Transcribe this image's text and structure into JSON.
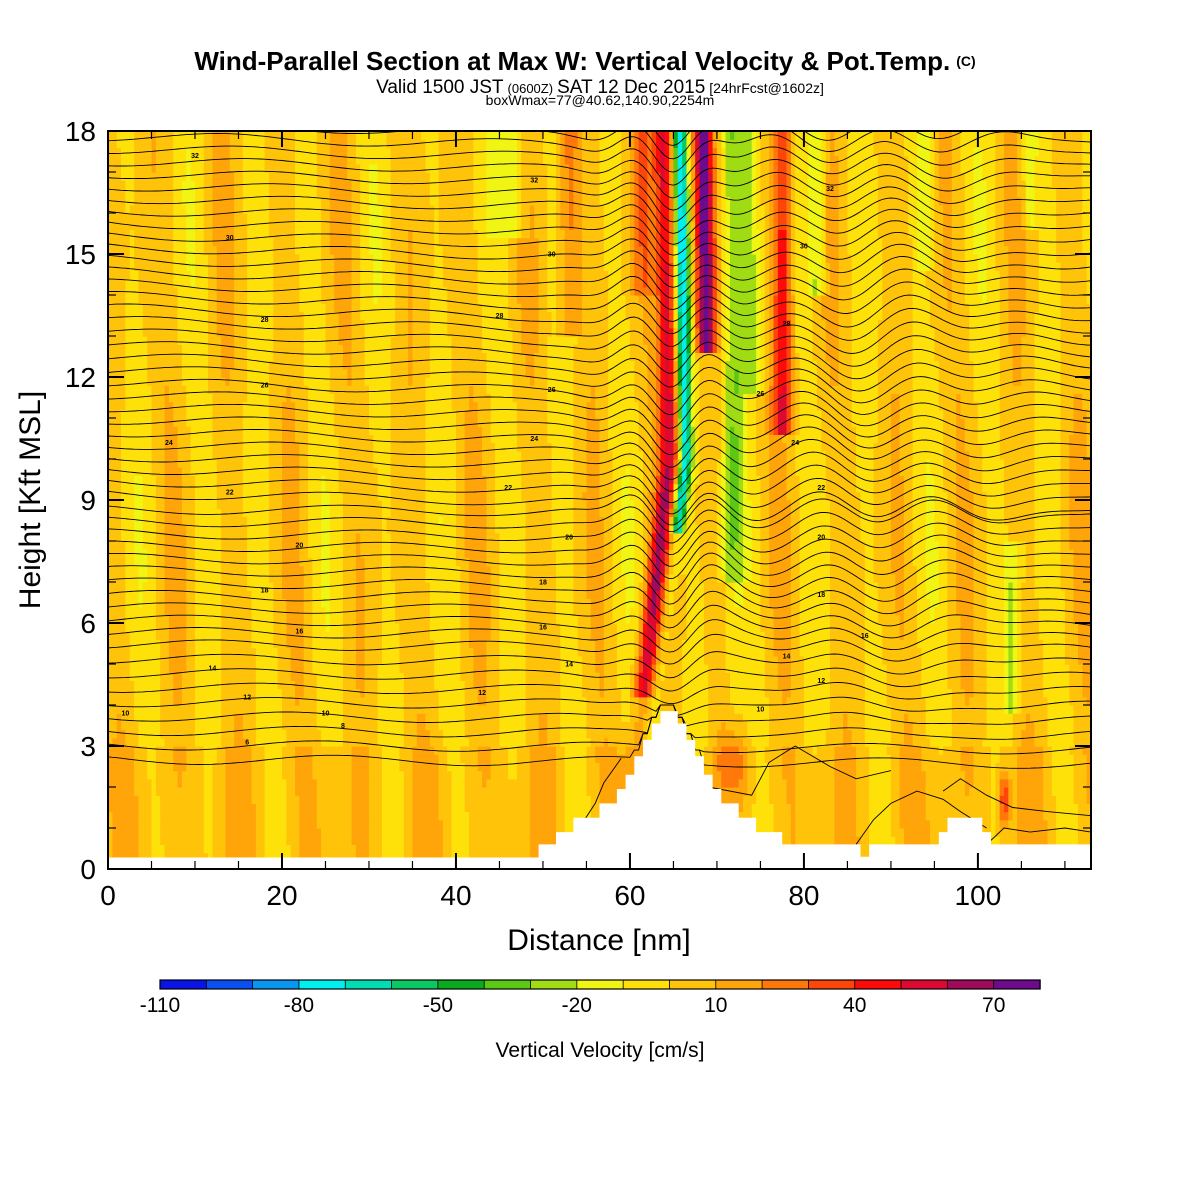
{
  "chart_data": {
    "type": "heatmap",
    "title": "Wind-Parallel Section at Max W: Vertical Velocity & Pot.Temp.",
    "title_mark": "(C)",
    "subtitle_main": "Valid 1500 JST",
    "subtitle_utc": "(0600Z)",
    "subtitle_date": "SAT 12 Dec 2015",
    "subtitle_run": "[24hrFcst@1602z]",
    "subtitle2": "boxWmax=77@40.62,140.90,2254m",
    "xlabel": "Distance [nm]",
    "ylabel": "Height [Kft MSL]",
    "xlim": [
      0,
      113
    ],
    "ylim": [
      0,
      18
    ],
    "xticks": [
      0,
      20,
      40,
      60,
      80,
      100
    ],
    "yticks": [
      0,
      3,
      6,
      9,
      12,
      15,
      18
    ],
    "colorbar": {
      "label": "Vertical Velocity [cm/s]",
      "tick_values": [
        -110,
        -80,
        -50,
        -20,
        10,
        40,
        70
      ],
      "bins": [
        -110,
        -100,
        -90,
        -80,
        -70,
        -60,
        -50,
        -40,
        -30,
        -20,
        -10,
        0,
        10,
        20,
        30,
        40,
        50,
        60,
        70,
        80
      ],
      "colors": [
        "#0a14e6",
        "#0a50f0",
        "#0a96f0",
        "#00f0f0",
        "#00dcb4",
        "#0ac864",
        "#0aaa1e",
        "#5ac814",
        "#a0dc14",
        "#f0f514",
        "#ffe10a",
        "#ffc30a",
        "#ffa50a",
        "#ff780a",
        "#ff460a",
        "#ff0a0a",
        "#dc0a32",
        "#a00a5a",
        "#6e0a8c"
      ]
    },
    "terrain_kft": [
      [
        0,
        0.28
      ],
      [
        49.5,
        0.28
      ],
      [
        49.5,
        0.6
      ],
      [
        51.5,
        0.6
      ],
      [
        51.5,
        0.9
      ],
      [
        53.5,
        0.9
      ],
      [
        53.5,
        1.25
      ],
      [
        56.5,
        1.25
      ],
      [
        56.5,
        1.6
      ],
      [
        58.5,
        1.6
      ],
      [
        58.5,
        1.95
      ],
      [
        59.5,
        1.95
      ],
      [
        59.5,
        2.3
      ],
      [
        60.5,
        2.3
      ],
      [
        60.5,
        2.75
      ],
      [
        61.5,
        2.75
      ],
      [
        61.5,
        3.15
      ],
      [
        62.5,
        3.15
      ],
      [
        62.5,
        3.55
      ],
      [
        63.5,
        3.55
      ],
      [
        63.5,
        3.85
      ],
      [
        65.5,
        3.85
      ],
      [
        65.5,
        3.55
      ],
      [
        66.5,
        3.55
      ],
      [
        66.5,
        3.15
      ],
      [
        67.5,
        3.15
      ],
      [
        67.5,
        2.75
      ],
      [
        68.5,
        2.75
      ],
      [
        68.5,
        2.3
      ],
      [
        69.5,
        2.3
      ],
      [
        69.5,
        1.95
      ],
      [
        70.5,
        1.95
      ],
      [
        70.5,
        1.6
      ],
      [
        72.5,
        1.6
      ],
      [
        72.5,
        1.25
      ],
      [
        74.5,
        1.25
      ],
      [
        74.5,
        0.9
      ],
      [
        77.5,
        0.9
      ],
      [
        77.5,
        0.6
      ],
      [
        86.5,
        0.6
      ],
      [
        86.5,
        0.3
      ],
      [
        87.5,
        0.3
      ],
      [
        87.5,
        0.6
      ],
      [
        95.5,
        0.6
      ],
      [
        95.5,
        0.9
      ],
      [
        96.5,
        0.9
      ],
      [
        96.5,
        1.25
      ],
      [
        100.5,
        1.25
      ],
      [
        100.5,
        0.9
      ],
      [
        101.5,
        0.9
      ],
      [
        101.5,
        0.6
      ],
      [
        113,
        0.6
      ]
    ],
    "theta_labels": [
      {
        "text": "32",
        "x": 10,
        "y": 17.4
      },
      {
        "text": "32",
        "x": 49,
        "y": 16.8
      },
      {
        "text": "32",
        "x": 83,
        "y": 16.6
      },
      {
        "text": "30",
        "x": 14,
        "y": 15.4
      },
      {
        "text": "30",
        "x": 51,
        "y": 15.0
      },
      {
        "text": "30",
        "x": 80,
        "y": 15.2
      },
      {
        "text": "28",
        "x": 18,
        "y": 13.4
      },
      {
        "text": "28",
        "x": 45,
        "y": 13.5
      },
      {
        "text": "28",
        "x": 78,
        "y": 13.3
      },
      {
        "text": "26",
        "x": 18,
        "y": 11.8
      },
      {
        "text": "26",
        "x": 51,
        "y": 11.7
      },
      {
        "text": "26",
        "x": 75,
        "y": 11.6
      },
      {
        "text": "24",
        "x": 7,
        "y": 10.4
      },
      {
        "text": "24",
        "x": 49,
        "y": 10.5
      },
      {
        "text": "24",
        "x": 79,
        "y": 10.4
      },
      {
        "text": "22",
        "x": 14,
        "y": 9.2
      },
      {
        "text": "22",
        "x": 46,
        "y": 9.3
      },
      {
        "text": "22",
        "x": 82,
        "y": 9.3
      },
      {
        "text": "20",
        "x": 22,
        "y": 7.9
      },
      {
        "text": "20",
        "x": 53,
        "y": 8.1
      },
      {
        "text": "20",
        "x": 82,
        "y": 8.1
      },
      {
        "text": "18",
        "x": 18,
        "y": 6.8
      },
      {
        "text": "18",
        "x": 50,
        "y": 7.0
      },
      {
        "text": "18",
        "x": 82,
        "y": 6.7
      },
      {
        "text": "16",
        "x": 22,
        "y": 5.8
      },
      {
        "text": "16",
        "x": 50,
        "y": 5.9
      },
      {
        "text": "16",
        "x": 87,
        "y": 5.7
      },
      {
        "text": "14",
        "x": 12,
        "y": 4.9
      },
      {
        "text": "14",
        "x": 53,
        "y": 5.0
      },
      {
        "text": "14",
        "x": 78,
        "y": 5.2
      },
      {
        "text": "12",
        "x": 16,
        "y": 4.2
      },
      {
        "text": "12",
        "x": 43,
        "y": 4.3
      },
      {
        "text": "12",
        "x": 82,
        "y": 4.6
      },
      {
        "text": "10",
        "x": 2,
        "y": 3.8
      },
      {
        "text": "10",
        "x": 25,
        "y": 3.8
      },
      {
        "text": "10",
        "x": 75,
        "y": 3.9
      },
      {
        "text": "8",
        "x": 27,
        "y": 3.5
      },
      {
        "text": "6",
        "x": 16,
        "y": 3.1
      }
    ]
  }
}
